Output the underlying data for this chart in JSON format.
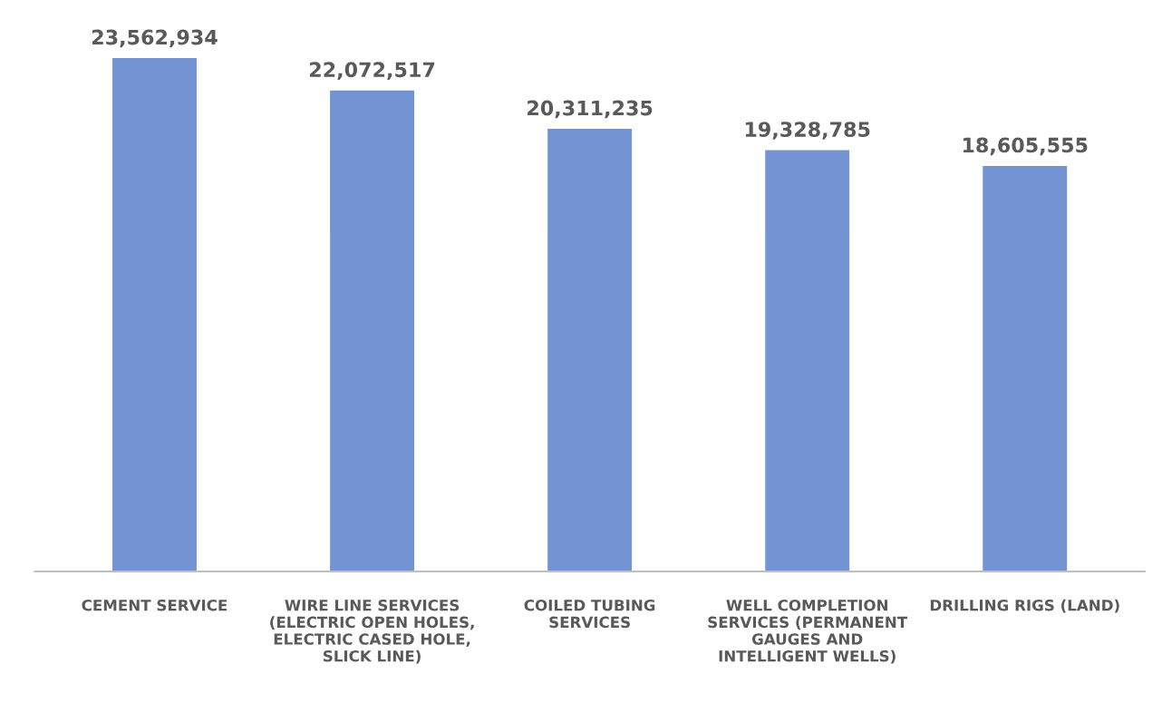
{
  "chart_data": {
    "type": "bar",
    "categories": [
      "CEMENT SERVICE",
      "WIRE LINE SERVICES\n(ELECTRIC OPEN HOLES,\nELECTRIC CASED HOLE,\nSLICK LINE)",
      "COILED TUBING\nSERVICES",
      "WELL COMPLETION\nSERVICES (PERMANENT\nGAUGES AND\nINTELLIGENT WELLS)",
      "DRILLING RIGS (LAND)"
    ],
    "values": [
      23562934,
      22072517,
      20311235,
      19328785,
      18605555
    ],
    "color": "#7393d3",
    "value_labels": [
      "23,562,934",
      "22,072,517",
      "20,311,235",
      "19,328,785",
      "18,605,555"
    ],
    "grid": false,
    "legend": false
  }
}
